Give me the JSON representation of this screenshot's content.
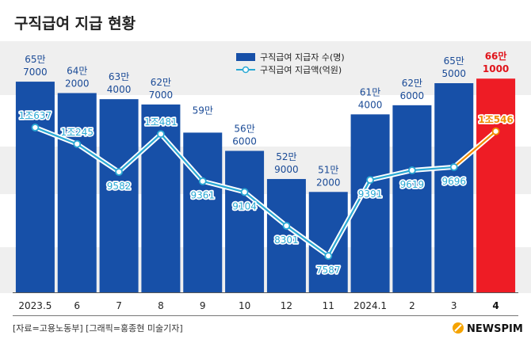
{
  "chart_data": {
    "type": "bar+line",
    "title": "구직급여 지급 현황",
    "categories": [
      "2023.5",
      "6",
      "7",
      "8",
      "9",
      "10",
      "12",
      "11",
      "2024.1",
      "2",
      "3",
      "4"
    ],
    "series": [
      {
        "name": "구직급여 지급자 수(명)",
        "type": "bar",
        "values": [
          657000,
          642000,
          634000,
          627000,
          590000,
          566000,
          529000,
          512000,
          614000,
          626000,
          655000,
          661000
        ],
        "labels": [
          [
            "65만",
            "7000"
          ],
          [
            "64만",
            "2000"
          ],
          [
            "63만",
            "4000"
          ],
          [
            "62만",
            "7000"
          ],
          [
            "59만",
            ""
          ],
          [
            "56만",
            "6000"
          ],
          [
            "52만",
            "9000"
          ],
          [
            "51만",
            "2000"
          ],
          [
            "61만",
            "4000"
          ],
          [
            "62만",
            "6000"
          ],
          [
            "65만",
            "5000"
          ],
          [
            "66만",
            "1000"
          ]
        ]
      },
      {
        "name": "구직급여 지급액(억원)",
        "type": "line",
        "values": [
          10637,
          10245,
          9582,
          10481,
          9361,
          9104,
          8301,
          7587,
          9391,
          9619,
          9696,
          10546
        ],
        "labels": [
          "1조637",
          "1조245",
          "9582",
          "1조481",
          "9361",
          "9104",
          "8301",
          "7587",
          "9391",
          "9619",
          "9696",
          "1조546"
        ]
      }
    ],
    "highlight_index": 11,
    "colors": {
      "bar": "#1750a8",
      "bar_highlight": "#ee1c25",
      "bar_label": "#1a4a96",
      "bar_label_highlight": "#e0141b",
      "line": "#2aa9d4",
      "line_highlight": "#f08c00",
      "band": "#efefef",
      "title": "#222222"
    },
    "legend_position": "top-center"
  },
  "source_text": "[자료=고용노동부] [그래픽=홍종현 미술기자]",
  "logo_text": "NEWSPIM"
}
